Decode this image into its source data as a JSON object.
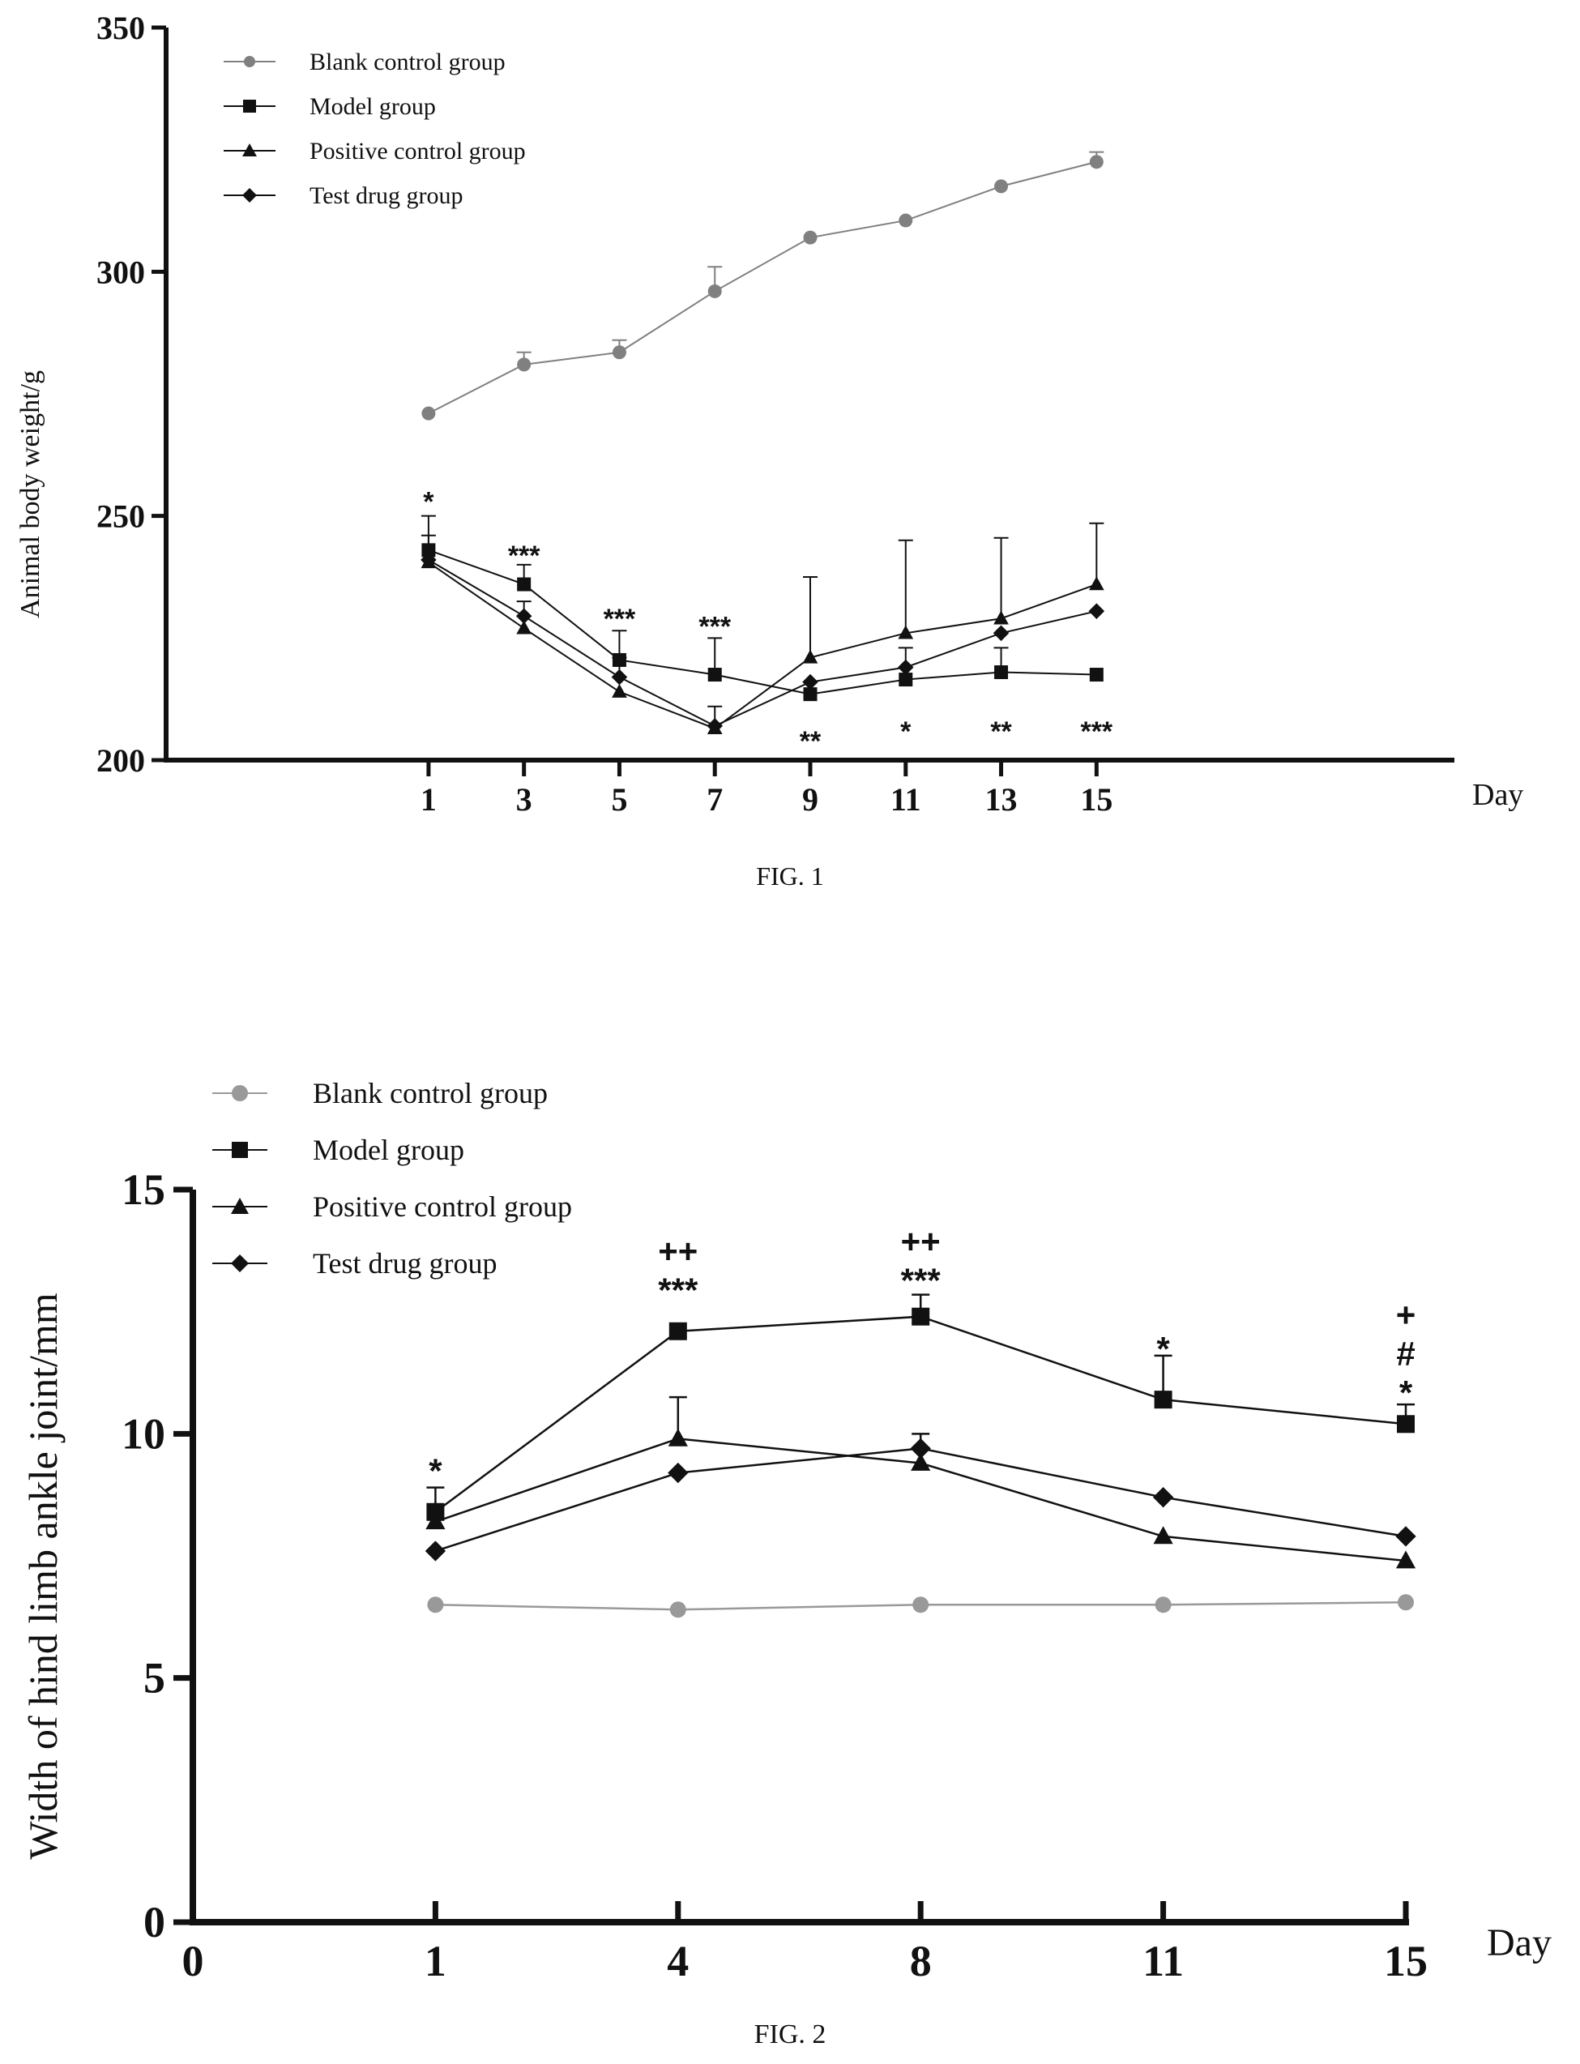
{
  "figures": [
    {
      "caption": "FIG. 1",
      "legend": [
        {
          "label": "Blank control group",
          "marker": "circle"
        },
        {
          "label": "Model group",
          "marker": "square"
        },
        {
          "label": "Positive control group",
          "marker": "triangle"
        },
        {
          "label": "Test drug group",
          "marker": "diamond"
        }
      ],
      "sig_annotations": [
        {
          "x": 1,
          "y": 253,
          "text": "*"
        },
        {
          "x": 3,
          "y": 242,
          "text": "***"
        },
        {
          "x": 5,
          "y": 229,
          "text": "***"
        },
        {
          "x": 7,
          "y": 227.5,
          "text": "***"
        },
        {
          "x": 9,
          "y": 204,
          "text": "**"
        },
        {
          "x": 11,
          "y": 206,
          "text": "*"
        },
        {
          "x": 13,
          "y": 206,
          "text": "**"
        },
        {
          "x": 15,
          "y": 206,
          "text": "***"
        }
      ]
    },
    {
      "caption": "FIG. 2",
      "legend": [
        {
          "label": "Blank control group",
          "marker": "circle"
        },
        {
          "label": "Model group",
          "marker": "square"
        },
        {
          "label": "Positive control group",
          "marker": "triangle"
        },
        {
          "label": "Test drug group",
          "marker": "diamond"
        }
      ],
      "sig_annotations": [
        {
          "x": 1,
          "y": 9.3,
          "lines": [
            "*"
          ]
        },
        {
          "x": 4,
          "y": 13.0,
          "lines": [
            "++",
            "***"
          ]
        },
        {
          "x": 8,
          "y": 13.2,
          "lines": [
            "++",
            "***"
          ]
        },
        {
          "x": 11,
          "y": 11.8,
          "lines": [
            "*"
          ]
        },
        {
          "x": 15,
          "y": 10.9,
          "lines": [
            "+",
            "#",
            "*"
          ]
        }
      ]
    }
  ],
  "chart_data": [
    {
      "type": "line",
      "title": "",
      "xlabel": "Day",
      "ylabel": "Animal body weight/g",
      "x": [
        1,
        3,
        5,
        7,
        9,
        11,
        13,
        15
      ],
      "x_ticks": [
        "1",
        "3",
        "5",
        "7",
        "9",
        "11",
        "13",
        "15"
      ],
      "xlim": [
        -4.5,
        22.5
      ],
      "ylim": [
        200,
        350
      ],
      "y_ticks": [
        200,
        250,
        300,
        350
      ],
      "legend_position": "top-left",
      "grid": false,
      "series": [
        {
          "name": "Blank control group",
          "color": "#808080",
          "marker": "circle",
          "values": [
            271,
            281,
            283.5,
            296,
            307,
            310.5,
            317.5,
            322.5
          ],
          "error": [
            0,
            2.5,
            2.5,
            5,
            0,
            0,
            0,
            2
          ]
        },
        {
          "name": "Model group",
          "color": "#111111",
          "marker": "square",
          "values": [
            243,
            236,
            220.5,
            217.5,
            213.5,
            216.5,
            218,
            217.5
          ],
          "error": [
            7,
            4,
            6,
            7.5,
            0,
            0,
            5,
            0
          ]
        },
        {
          "name": "Positive control group",
          "color": "#111111",
          "marker": "triangle",
          "values": [
            240.5,
            227,
            214,
            206.5,
            221,
            226,
            229,
            236
          ],
          "error": [
            0,
            0,
            0,
            0,
            16.5,
            19,
            16.5,
            12.5
          ]
        },
        {
          "name": "Test drug group",
          "color": "#111111",
          "marker": "diamond",
          "values": [
            241,
            229.5,
            217,
            207,
            216,
            219,
            226,
            230.5
          ],
          "error": [
            5,
            3,
            4,
            4,
            0,
            4,
            0,
            0
          ]
        }
      ]
    },
    {
      "type": "line",
      "title": "",
      "xlabel": "Day",
      "ylabel": "Width of hind limb ankle joint/mm",
      "x": [
        1,
        4,
        8,
        11,
        15
      ],
      "x_ticks": [
        "0",
        "1",
        "4",
        "8",
        "11",
        "15"
      ],
      "x_ticks_note": "categorical positions 0,1,2,3,4,5",
      "ylim": [
        0,
        15
      ],
      "y_ticks": [
        0,
        5,
        10,
        15
      ],
      "legend_position": "top-left",
      "grid": false,
      "series": [
        {
          "name": "Blank control group",
          "color": "#999999",
          "marker": "circle",
          "values": [
            6.5,
            6.4,
            6.5,
            6.5,
            6.55
          ],
          "error": [
            0,
            0,
            0,
            0,
            0
          ]
        },
        {
          "name": "Model group",
          "color": "#111111",
          "marker": "square",
          "values": [
            8.4,
            12.1,
            12.4,
            10.7,
            10.2
          ],
          "error": [
            0.5,
            0,
            0.45,
            0.9,
            0.4
          ]
        },
        {
          "name": "Positive control group",
          "color": "#111111",
          "marker": "triangle",
          "values": [
            8.2,
            9.9,
            9.4,
            7.9,
            7.4
          ],
          "error": [
            0,
            0.85,
            0,
            0,
            0
          ]
        },
        {
          "name": "Test drug group",
          "color": "#111111",
          "marker": "diamond",
          "values": [
            7.6,
            9.2,
            9.7,
            8.7,
            7.9
          ],
          "error": [
            0,
            0,
            0.3,
            0,
            0
          ]
        }
      ]
    }
  ]
}
